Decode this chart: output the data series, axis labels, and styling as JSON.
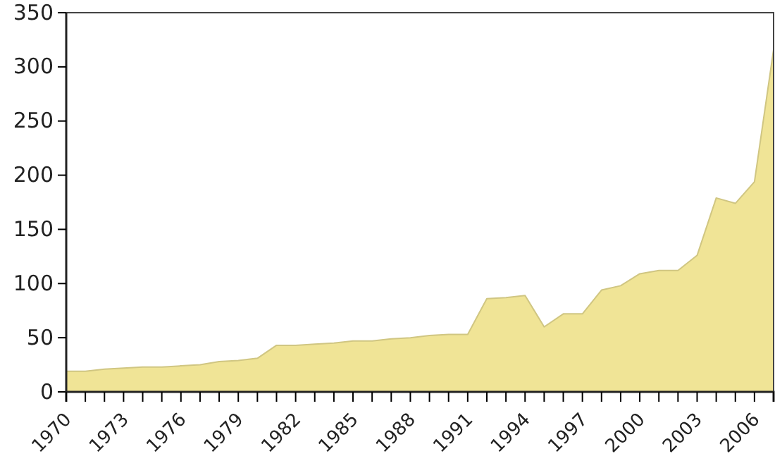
{
  "chart_data": {
    "type": "area",
    "x": [
      1970,
      1971,
      1972,
      1973,
      1974,
      1975,
      1976,
      1977,
      1978,
      1979,
      1980,
      1981,
      1982,
      1983,
      1984,
      1985,
      1986,
      1987,
      1988,
      1989,
      1990,
      1991,
      1992,
      1993,
      1994,
      1995,
      1996,
      1997,
      1998,
      1999,
      2000,
      2001,
      2002,
      2003,
      2004,
      2005,
      2006,
      2007
    ],
    "series": [
      {
        "color": "#f0e496",
        "values": [
          19,
          19,
          21,
          22,
          23,
          23,
          24,
          25,
          28,
          29,
          31,
          43,
          43,
          44,
          45,
          47,
          47,
          49,
          50,
          52,
          53,
          53,
          86,
          87,
          89,
          60,
          72,
          72,
          94,
          98,
          109,
          112,
          112,
          126,
          179,
          174,
          194,
          316
        ]
      }
    ],
    "xlim": [
      1970,
      2007
    ],
    "xticks": [
      1970,
      {
        "value": 1971,
        "label": null
      },
      {
        "value": 1972,
        "label": null
      },
      1973,
      {
        "value": 1974,
        "label": null
      },
      {
        "value": 1975,
        "label": null
      },
      1976,
      {
        "value": 1977,
        "label": null
      },
      {
        "value": 1978,
        "label": null
      },
      1979,
      {
        "value": 1980,
        "label": null
      },
      {
        "value": 1981,
        "label": null
      },
      1982,
      {
        "value": 1983,
        "label": null
      },
      {
        "value": 1984,
        "label": null
      },
      1985,
      {
        "value": 1986,
        "label": null
      },
      {
        "value": 1987,
        "label": null
      },
      1988,
      {
        "value": 1989,
        "label": null
      },
      {
        "value": 1990,
        "label": null
      },
      1991,
      {
        "value": 1992,
        "label": null
      },
      {
        "value": 1993,
        "label": null
      },
      1994,
      {
        "value": 1995,
        "label": null
      },
      {
        "value": 1996,
        "label": null
      },
      1997,
      {
        "value": 1998,
        "label": null
      },
      {
        "value": 1999,
        "label": null
      },
      2000,
      {
        "value": 2001,
        "label": null
      },
      {
        "value": 2002,
        "label": null
      },
      2003,
      {
        "value": 2004,
        "label": null
      },
      {
        "value": 2005,
        "label": null
      },
      2006,
      {
        "value": 2007,
        "label": null
      }
    ],
    "ylim": [
      0,
      350
    ],
    "yticks": [
      0,
      50,
      100,
      150,
      200,
      250,
      300,
      350
    ],
    "grid": false
  }
}
